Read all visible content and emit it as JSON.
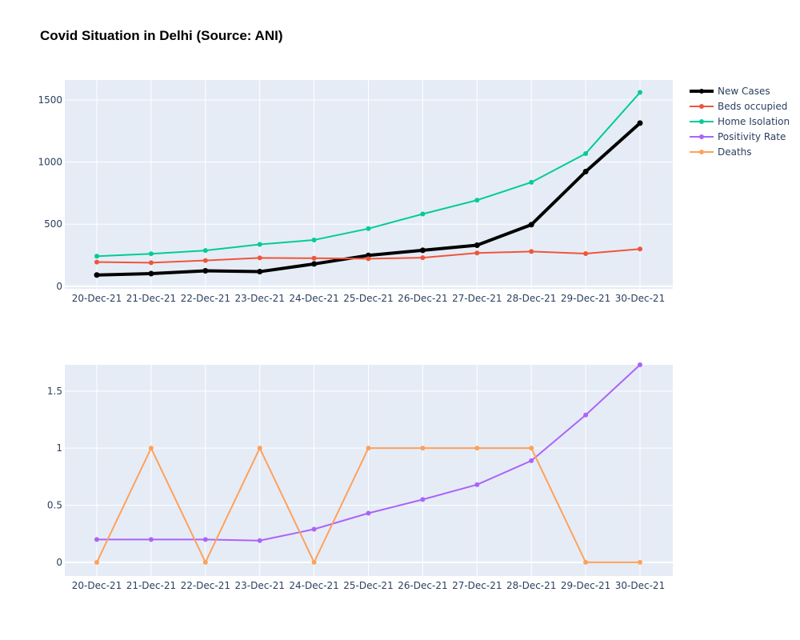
{
  "title": "Covid Situation in Delhi (Source: ANI)",
  "colors": {
    "plot_bg": "#e5ecf6",
    "grid": "#ffffff",
    "tick_text": "#2a3f5f"
  },
  "chart_data": [
    {
      "type": "line",
      "categories": [
        "20-Dec-21",
        "21-Dec-21",
        "22-Dec-21",
        "23-Dec-21",
        "24-Dec-21",
        "25-Dec-21",
        "26-Dec-21",
        "27-Dec-21",
        "28-Dec-21",
        "29-Dec-21",
        "30-Dec-21"
      ],
      "ylim": [
        -20,
        1660
      ],
      "yticks": [
        0,
        500,
        1000,
        1500
      ],
      "ytick_labels": [
        "0",
        "500",
        "1000",
        "1500"
      ],
      "grid": true,
      "series": [
        {
          "name": "New Cases",
          "color": "#000000",
          "values": [
            91,
            102,
            125,
            118,
            180,
            249,
            290,
            331,
            496,
            923,
            1313
          ]
        },
        {
          "name": "Beds occupied",
          "color": "#ef553b",
          "values": [
            195,
            190,
            208,
            229,
            226,
            222,
            230,
            268,
            280,
            263,
            300
          ]
        },
        {
          "name": "Home Isolation",
          "color": "#00cc96",
          "values": [
            242,
            262,
            288,
            337,
            373,
            464,
            582,
            693,
            837,
            1068,
            1560
          ]
        }
      ]
    },
    {
      "type": "line",
      "categories": [
        "20-Dec-21",
        "21-Dec-21",
        "22-Dec-21",
        "23-Dec-21",
        "24-Dec-21",
        "25-Dec-21",
        "26-Dec-21",
        "27-Dec-21",
        "28-Dec-21",
        "29-Dec-21",
        "30-Dec-21"
      ],
      "ylim": [
        -0.12,
        1.73
      ],
      "yticks": [
        0,
        0.5,
        1,
        1.5
      ],
      "ytick_labels": [
        "0",
        "0.5",
        "1",
        "1.5"
      ],
      "grid": true,
      "series": [
        {
          "name": "Positivity Rate",
          "color": "#ab63fa",
          "values": [
            0.2,
            0.2,
            0.2,
            0.19,
            0.29,
            0.43,
            0.55,
            0.68,
            0.89,
            1.29,
            1.73
          ]
        },
        {
          "name": "Deaths",
          "color": "#ffa15a",
          "values": [
            0,
            1,
            0,
            1,
            0,
            1,
            1,
            1,
            1,
            0,
            0
          ]
        }
      ]
    }
  ],
  "legend": {
    "placement": "right",
    "items": [
      {
        "name": "New Cases",
        "color": "#000000"
      },
      {
        "name": "Beds occupied",
        "color": "#ef553b"
      },
      {
        "name": "Home Isolation",
        "color": "#00cc96"
      },
      {
        "name": "Positivity Rate",
        "color": "#ab63fa"
      },
      {
        "name": "Deaths",
        "color": "#ffa15a"
      }
    ]
  }
}
